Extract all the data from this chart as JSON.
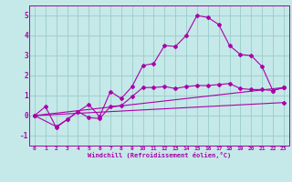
{
  "xlabel": "Windchill (Refroidissement éolien,°C)",
  "bg_color": "#c5e8e8",
  "line_color": "#aa00aa",
  "grid_color": "#99cccc",
  "xlim": [
    -0.5,
    23.5
  ],
  "ylim": [
    -1.5,
    5.5
  ],
  "yticks": [
    -1,
    0,
    1,
    2,
    3,
    4,
    5
  ],
  "xticks": [
    0,
    1,
    2,
    3,
    4,
    5,
    6,
    7,
    8,
    9,
    10,
    11,
    12,
    13,
    14,
    15,
    16,
    17,
    18,
    19,
    20,
    21,
    22,
    23
  ],
  "line1_x": [
    0,
    1,
    2,
    3,
    4,
    5,
    6,
    7,
    8,
    9,
    10,
    11,
    12,
    13,
    14,
    15,
    16,
    17,
    18,
    19,
    20,
    21,
    22,
    23
  ],
  "line1_y": [
    0.0,
    0.45,
    -0.6,
    -0.2,
    0.2,
    0.55,
    -0.05,
    1.2,
    0.85,
    1.45,
    2.5,
    2.6,
    3.5,
    3.45,
    4.0,
    5.0,
    4.9,
    4.55,
    3.5,
    3.05,
    3.0,
    2.45,
    1.25,
    1.4
  ],
  "line2_x": [
    0,
    2,
    3,
    4,
    5,
    6,
    7,
    8,
    9,
    10,
    11,
    12,
    13,
    14,
    15,
    16,
    17,
    18,
    19,
    20,
    21,
    22,
    23
  ],
  "line2_y": [
    0.0,
    -0.55,
    -0.2,
    0.2,
    -0.1,
    -0.15,
    0.45,
    0.5,
    0.95,
    1.4,
    1.4,
    1.45,
    1.35,
    1.45,
    1.5,
    1.5,
    1.55,
    1.6,
    1.35,
    1.3,
    1.3,
    1.25,
    1.4
  ],
  "line3_x": [
    0,
    23
  ],
  "line3_y": [
    0.0,
    1.4
  ],
  "line4_x": [
    0,
    23
  ],
  "line4_y": [
    0.0,
    0.65
  ]
}
